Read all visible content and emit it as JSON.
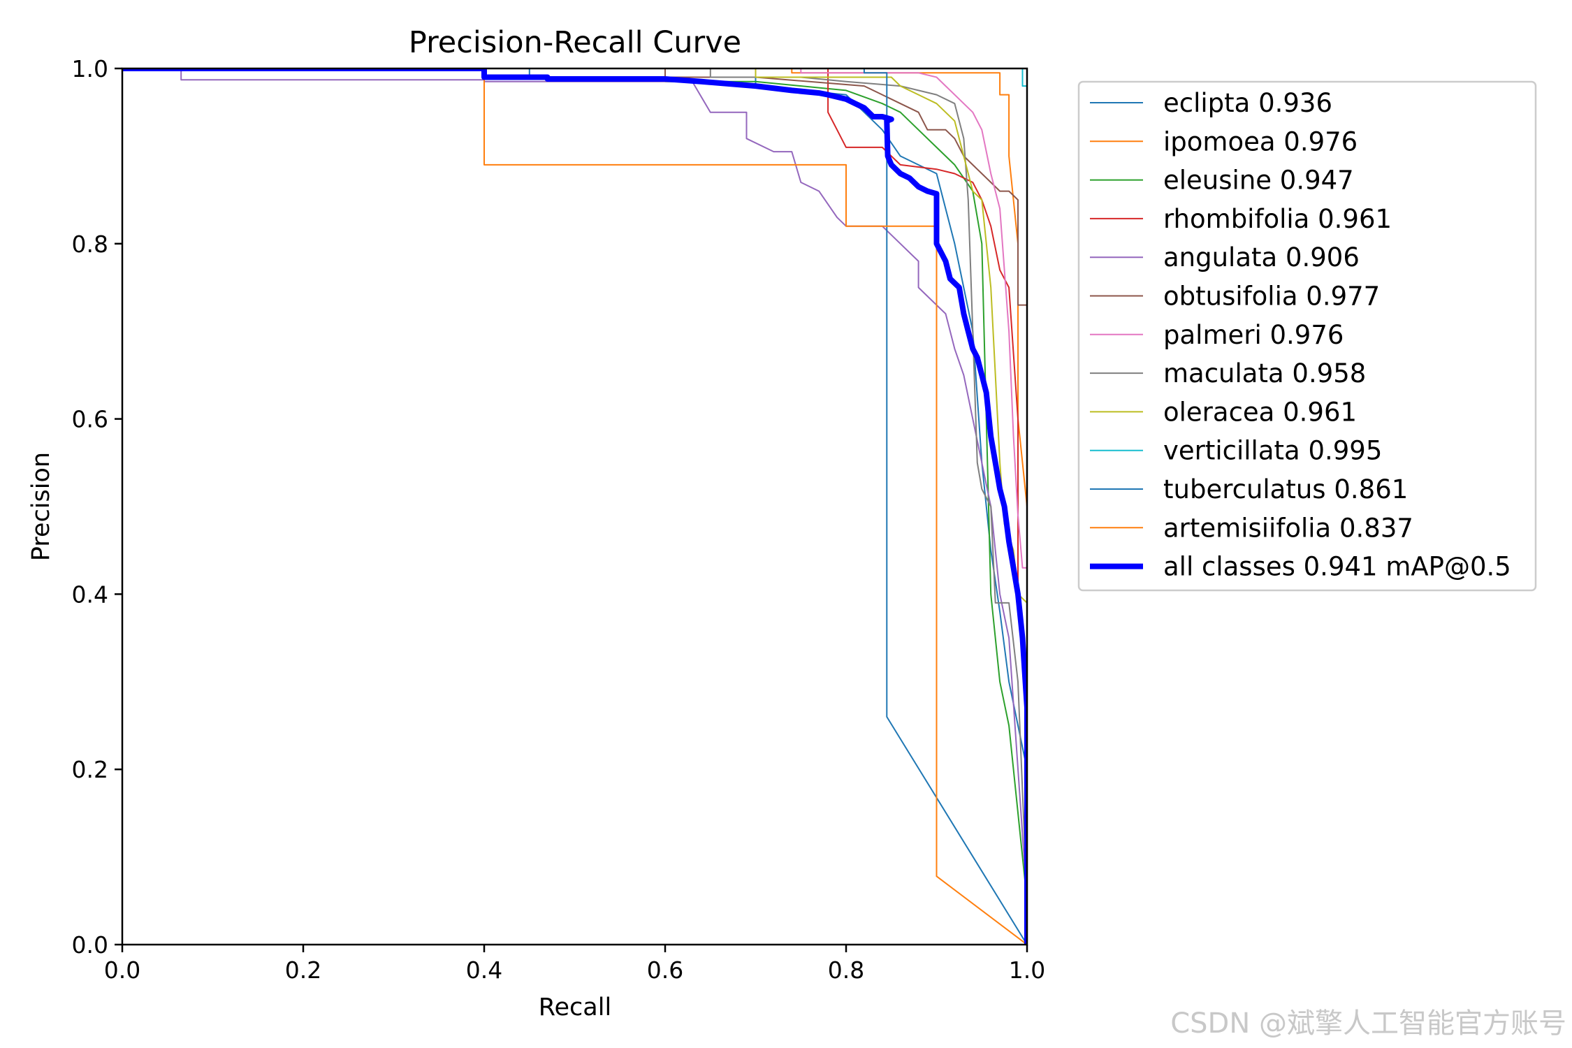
{
  "chart_data": {
    "type": "line",
    "title": "Precision-Recall Curve",
    "xlabel": "Recall",
    "ylabel": "Precision",
    "xlim": [
      0,
      1
    ],
    "ylim": [
      0,
      1
    ],
    "x_ticks": [
      "0.0",
      "0.2",
      "0.4",
      "0.6",
      "0.8",
      "1.0"
    ],
    "y_ticks": [
      "0.0",
      "0.2",
      "0.4",
      "0.6",
      "0.8",
      "1.0"
    ],
    "grid": false,
    "legend_position": "outside-right-top",
    "series": [
      {
        "name": "eclipta 0.936",
        "color": "#1f77b4",
        "width": 2,
        "points": [
          [
            0,
            1
          ],
          [
            0.45,
            1
          ],
          [
            0.45,
            0.99
          ],
          [
            0.7,
            0.99
          ],
          [
            0.7,
            0.98
          ],
          [
            0.8,
            0.97
          ],
          [
            0.82,
            0.95
          ],
          [
            0.84,
            0.93
          ],
          [
            0.86,
            0.9
          ],
          [
            0.9,
            0.88
          ],
          [
            0.92,
            0.8
          ],
          [
            0.94,
            0.7
          ],
          [
            0.95,
            0.55
          ],
          [
            0.96,
            0.45
          ],
          [
            0.97,
            0.38
          ],
          [
            0.98,
            0.3
          ],
          [
            1,
            0.2
          ],
          [
            1,
            0
          ]
        ]
      },
      {
        "name": "ipomoea 0.976",
        "color": "#ff7f0e",
        "width": 2,
        "points": [
          [
            0,
            1
          ],
          [
            0.74,
            1
          ],
          [
            0.74,
            0.995
          ],
          [
            0.97,
            0.995
          ],
          [
            0.97,
            0.97
          ],
          [
            0.98,
            0.97
          ],
          [
            0.98,
            0.9
          ],
          [
            0.99,
            0.8
          ],
          [
            0.99,
            0.6
          ],
          [
            1,
            0.5
          ],
          [
            1,
            0
          ]
        ]
      },
      {
        "name": "eleusine 0.947",
        "color": "#2ca02c",
        "width": 2,
        "points": [
          [
            0,
            1
          ],
          [
            0.6,
            1
          ],
          [
            0.6,
            0.985
          ],
          [
            0.7,
            0.985
          ],
          [
            0.8,
            0.975
          ],
          [
            0.84,
            0.96
          ],
          [
            0.86,
            0.95
          ],
          [
            0.88,
            0.93
          ],
          [
            0.9,
            0.91
          ],
          [
            0.92,
            0.89
          ],
          [
            0.94,
            0.86
          ],
          [
            0.95,
            0.8
          ],
          [
            0.955,
            0.6
          ],
          [
            0.96,
            0.4
          ],
          [
            0.97,
            0.3
          ],
          [
            0.98,
            0.25
          ],
          [
            1,
            0.05
          ],
          [
            1,
            0
          ]
        ]
      },
      {
        "name": "rhombifolia 0.961",
        "color": "#d62728",
        "width": 2,
        "points": [
          [
            0,
            1
          ],
          [
            0.78,
            1
          ],
          [
            0.78,
            0.95
          ],
          [
            0.79,
            0.93
          ],
          [
            0.8,
            0.91
          ],
          [
            0.84,
            0.91
          ],
          [
            0.86,
            0.89
          ],
          [
            0.9,
            0.885
          ],
          [
            0.92,
            0.88
          ],
          [
            0.94,
            0.87
          ],
          [
            0.95,
            0.85
          ],
          [
            0.96,
            0.82
          ],
          [
            0.97,
            0.77
          ],
          [
            0.98,
            0.75
          ],
          [
            0.99,
            0.6
          ],
          [
            0.99,
            0.4
          ],
          [
            1,
            0.3
          ],
          [
            1,
            0
          ]
        ]
      },
      {
        "name": "angulata 0.906",
        "color": "#9467bd",
        "width": 2,
        "points": [
          [
            0,
            1
          ],
          [
            0.065,
            1
          ],
          [
            0.065,
            0.987
          ],
          [
            0.4,
            0.987
          ],
          [
            0.4,
            0.985
          ],
          [
            0.63,
            0.985
          ],
          [
            0.65,
            0.95
          ],
          [
            0.69,
            0.95
          ],
          [
            0.69,
            0.92
          ],
          [
            0.72,
            0.905
          ],
          [
            0.74,
            0.905
          ],
          [
            0.75,
            0.87
          ],
          [
            0.77,
            0.86
          ],
          [
            0.79,
            0.83
          ],
          [
            0.8,
            0.82
          ],
          [
            0.84,
            0.82
          ],
          [
            0.85,
            0.81
          ],
          [
            0.86,
            0.8
          ],
          [
            0.88,
            0.78
          ],
          [
            0.88,
            0.75
          ],
          [
            0.9,
            0.73
          ],
          [
            0.91,
            0.72
          ],
          [
            0.92,
            0.68
          ],
          [
            0.93,
            0.65
          ],
          [
            0.94,
            0.6
          ],
          [
            0.95,
            0.55
          ],
          [
            0.96,
            0.5
          ],
          [
            0.97,
            0.4
          ],
          [
            0.98,
            0.35
          ],
          [
            1,
            0.05
          ],
          [
            1,
            0
          ]
        ]
      },
      {
        "name": "obtusifolia 0.977",
        "color": "#8c564b",
        "width": 2,
        "points": [
          [
            0,
            1
          ],
          [
            0.6,
            1
          ],
          [
            0.6,
            0.99
          ],
          [
            0.7,
            0.99
          ],
          [
            0.82,
            0.98
          ],
          [
            0.84,
            0.97
          ],
          [
            0.86,
            0.96
          ],
          [
            0.88,
            0.95
          ],
          [
            0.89,
            0.93
          ],
          [
            0.91,
            0.93
          ],
          [
            0.92,
            0.92
          ],
          [
            0.93,
            0.9
          ],
          [
            0.95,
            0.88
          ],
          [
            0.96,
            0.87
          ],
          [
            0.97,
            0.86
          ],
          [
            0.98,
            0.86
          ],
          [
            0.99,
            0.85
          ],
          [
            0.99,
            0.73
          ],
          [
            1,
            0.73
          ],
          [
            1,
            0
          ]
        ]
      },
      {
        "name": "palmeri 0.976",
        "color": "#e377c2",
        "width": 2,
        "points": [
          [
            0,
            1
          ],
          [
            0.75,
            1
          ],
          [
            0.75,
            0.995
          ],
          [
            0.88,
            0.995
          ],
          [
            0.9,
            0.99
          ],
          [
            0.91,
            0.98
          ],
          [
            0.93,
            0.96
          ],
          [
            0.94,
            0.95
          ],
          [
            0.95,
            0.93
          ],
          [
            0.96,
            0.88
          ],
          [
            0.97,
            0.84
          ],
          [
            0.98,
            0.7
          ],
          [
            0.985,
            0.58
          ],
          [
            0.99,
            0.49
          ],
          [
            0.995,
            0.43
          ],
          [
            1,
            0.43
          ],
          [
            1,
            0
          ]
        ]
      },
      {
        "name": "maculata 0.958",
        "color": "#7f7f7f",
        "width": 2,
        "points": [
          [
            0,
            1
          ],
          [
            0.65,
            1
          ],
          [
            0.65,
            0.99
          ],
          [
            0.75,
            0.99
          ],
          [
            0.8,
            0.985
          ],
          [
            0.86,
            0.98
          ],
          [
            0.9,
            0.97
          ],
          [
            0.92,
            0.96
          ],
          [
            0.93,
            0.92
          ],
          [
            0.935,
            0.85
          ],
          [
            0.94,
            0.7
          ],
          [
            0.945,
            0.55
          ],
          [
            0.95,
            0.52
          ],
          [
            0.96,
            0.5
          ],
          [
            0.965,
            0.39
          ],
          [
            0.98,
            0.39
          ],
          [
            0.99,
            0.3
          ],
          [
            1,
            0.05
          ],
          [
            1,
            0
          ]
        ]
      },
      {
        "name": "oleracea 0.961",
        "color": "#bcbd22",
        "width": 2,
        "points": [
          [
            0,
            1
          ],
          [
            0.7,
            1
          ],
          [
            0.7,
            0.99
          ],
          [
            0.85,
            0.99
          ],
          [
            0.86,
            0.98
          ],
          [
            0.88,
            0.97
          ],
          [
            0.9,
            0.96
          ],
          [
            0.92,
            0.94
          ],
          [
            0.93,
            0.9
          ],
          [
            0.94,
            0.86
          ],
          [
            0.95,
            0.85
          ],
          [
            0.96,
            0.75
          ],
          [
            0.965,
            0.65
          ],
          [
            0.97,
            0.55
          ],
          [
            0.975,
            0.48
          ],
          [
            0.985,
            0.45
          ],
          [
            0.99,
            0.4
          ],
          [
            1,
            0.39
          ],
          [
            1,
            0
          ]
        ]
      },
      {
        "name": "verticillata 0.995",
        "color": "#17becf",
        "width": 2,
        "points": [
          [
            0,
            1
          ],
          [
            0.995,
            1
          ],
          [
            0.995,
            0.98
          ],
          [
            1,
            0.98
          ],
          [
            1,
            0.5
          ],
          [
            1,
            0
          ]
        ]
      },
      {
        "name": "tuberculatus 0.861",
        "color": "#1f77b4",
        "width": 2,
        "points": [
          [
            0,
            1
          ],
          [
            0.82,
            1
          ],
          [
            0.82,
            0.995
          ],
          [
            0.845,
            0.995
          ],
          [
            0.845,
            0.26
          ],
          [
            1,
            0
          ]
        ]
      },
      {
        "name": "artemisiifolia 0.837",
        "color": "#ff7f0e",
        "width": 2,
        "points": [
          [
            0,
            1
          ],
          [
            0.4,
            1
          ],
          [
            0.4,
            0.89
          ],
          [
            0.8,
            0.89
          ],
          [
            0.8,
            0.82
          ],
          [
            0.9,
            0.82
          ],
          [
            0.9,
            0.078
          ],
          [
            1,
            0
          ]
        ]
      },
      {
        "name": "all classes 0.941 mAP@0.5",
        "color": "#0000ff",
        "width": 8,
        "points": [
          [
            0,
            1
          ],
          [
            0.4,
            1
          ],
          [
            0.4,
            0.99
          ],
          [
            0.47,
            0.99
          ],
          [
            0.47,
            0.988
          ],
          [
            0.6,
            0.988
          ],
          [
            0.64,
            0.985
          ],
          [
            0.7,
            0.98
          ],
          [
            0.74,
            0.975
          ],
          [
            0.77,
            0.972
          ],
          [
            0.78,
            0.97
          ],
          [
            0.8,
            0.965
          ],
          [
            0.81,
            0.96
          ],
          [
            0.82,
            0.955
          ],
          [
            0.83,
            0.945
          ],
          [
            0.84,
            0.945
          ],
          [
            0.85,
            0.942
          ],
          [
            0.845,
            0.94
          ],
          [
            0.846,
            0.9
          ],
          [
            0.85,
            0.89
          ],
          [
            0.86,
            0.88
          ],
          [
            0.87,
            0.875
          ],
          [
            0.88,
            0.865
          ],
          [
            0.89,
            0.86
          ],
          [
            0.9,
            0.857
          ],
          [
            0.9,
            0.8
          ],
          [
            0.905,
            0.79
          ],
          [
            0.91,
            0.78
          ],
          [
            0.915,
            0.76
          ],
          [
            0.925,
            0.75
          ],
          [
            0.93,
            0.72
          ],
          [
            0.935,
            0.7
          ],
          [
            0.94,
            0.68
          ],
          [
            0.945,
            0.67
          ],
          [
            0.95,
            0.65
          ],
          [
            0.955,
            0.63
          ],
          [
            0.96,
            0.58
          ],
          [
            0.965,
            0.55
          ],
          [
            0.97,
            0.52
          ],
          [
            0.975,
            0.5
          ],
          [
            0.98,
            0.46
          ],
          [
            0.985,
            0.43
          ],
          [
            0.99,
            0.4
          ],
          [
            0.995,
            0.35
          ],
          [
            1,
            0.27
          ],
          [
            1,
            0.2
          ],
          [
            1,
            0
          ]
        ]
      }
    ]
  },
  "watermark": "CSDN @斌擎人工智能官方账号"
}
